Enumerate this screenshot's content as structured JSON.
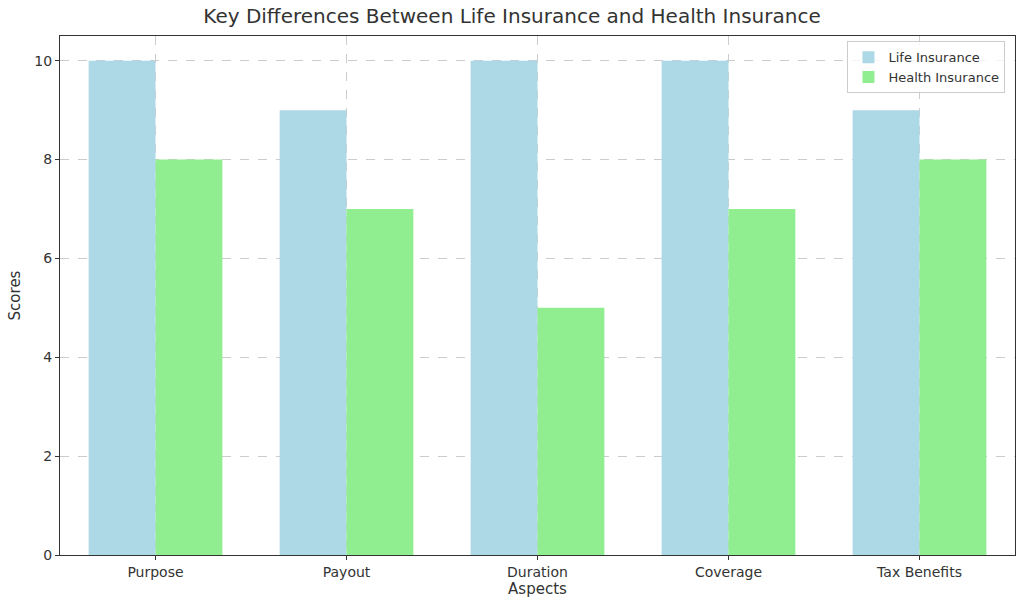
{
  "chart_data": {
    "type": "bar",
    "title": "Key Differences Between Life Insurance and Health Insurance",
    "x_label": "Aspects",
    "y_label": "Scores",
    "categories": [
      "Purpose",
      "Payout",
      "Duration",
      "Coverage",
      "Tax Benefits"
    ],
    "series": [
      {
        "name": "Life Insurance",
        "color": "#add8e6",
        "values": [
          10,
          9,
          10,
          10,
          9
        ]
      },
      {
        "name": "Health Insurance",
        "color": "#90ee90",
        "values": [
          8,
          7,
          5,
          7,
          8
        ]
      }
    ],
    "ylim": [
      0,
      10.5
    ],
    "yticks": [
      0,
      2,
      4,
      6,
      8,
      10
    ],
    "grid": true,
    "legend": "upper right"
  }
}
